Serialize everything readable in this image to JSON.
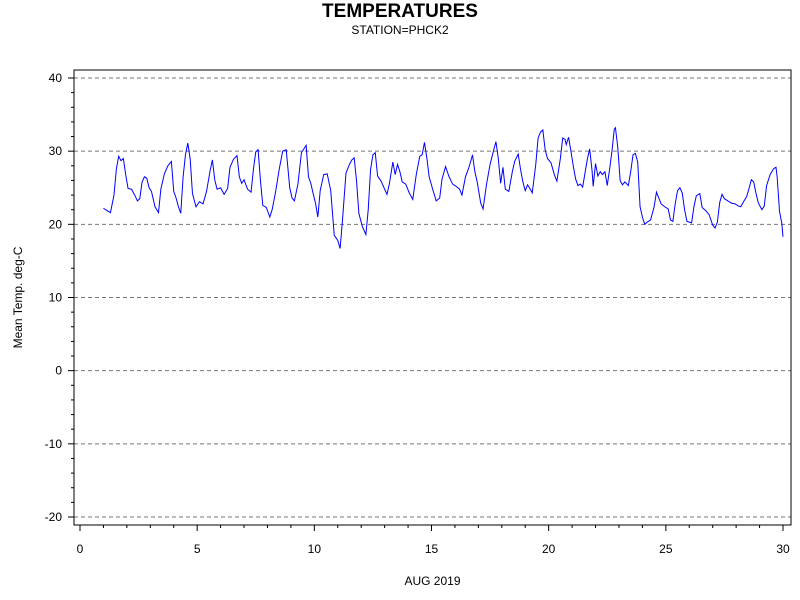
{
  "title": "TEMPERATURES",
  "subtitle": "STATION=PHCK2",
  "chart_data": {
    "type": "line",
    "title": "TEMPERATURES",
    "subtitle": "STATION=PHCK2",
    "xlabel": "AUG 2019",
    "ylabel": "Mean Temp. deg-C",
    "xlim": [
      0,
      30
    ],
    "ylim": [
      -20,
      40
    ],
    "x_ticks": [
      0,
      5,
      10,
      15,
      20,
      25,
      30
    ],
    "y_ticks": [
      -20,
      -10,
      0,
      10,
      20,
      30,
      40
    ],
    "grid": "horizontal-dashed",
    "series_color": "#0000ff",
    "series": [
      {
        "points": [
          [
            1.0,
            22.2
          ],
          [
            1.15,
            21.9
          ],
          [
            1.3,
            21.6
          ],
          [
            1.45,
            24.0
          ],
          [
            1.55,
            27.5
          ],
          [
            1.65,
            29.3
          ],
          [
            1.75,
            28.7
          ],
          [
            1.85,
            29.0
          ],
          [
            1.95,
            26.8
          ],
          [
            2.05,
            24.9
          ],
          [
            2.2,
            24.8
          ],
          [
            2.35,
            23.9
          ],
          [
            2.45,
            23.2
          ],
          [
            2.55,
            23.5
          ],
          [
            2.65,
            25.8
          ],
          [
            2.75,
            26.5
          ],
          [
            2.85,
            26.3
          ],
          [
            2.95,
            25.0
          ],
          [
            3.05,
            24.5
          ],
          [
            3.2,
            22.4
          ],
          [
            3.35,
            21.6
          ],
          [
            3.45,
            24.8
          ],
          [
            3.6,
            26.9
          ],
          [
            3.75,
            28.0
          ],
          [
            3.9,
            28.6
          ],
          [
            4.0,
            24.5
          ],
          [
            4.1,
            23.6
          ],
          [
            4.2,
            22.4
          ],
          [
            4.3,
            21.5
          ],
          [
            4.4,
            26.5
          ],
          [
            4.5,
            29.5
          ],
          [
            4.6,
            31.1
          ],
          [
            4.7,
            29.0
          ],
          [
            4.8,
            24.2
          ],
          [
            4.95,
            22.4
          ],
          [
            5.1,
            23.1
          ],
          [
            5.25,
            22.8
          ],
          [
            5.4,
            24.5
          ],
          [
            5.55,
            27.3
          ],
          [
            5.65,
            28.8
          ],
          [
            5.75,
            26.1
          ],
          [
            5.85,
            24.8
          ],
          [
            6.0,
            25.0
          ],
          [
            6.15,
            24.1
          ],
          [
            6.3,
            24.9
          ],
          [
            6.4,
            27.8
          ],
          [
            6.55,
            28.9
          ],
          [
            6.7,
            29.4
          ],
          [
            6.8,
            26.5
          ],
          [
            6.9,
            25.6
          ],
          [
            7.0,
            26.1
          ],
          [
            7.15,
            24.8
          ],
          [
            7.3,
            24.4
          ],
          [
            7.4,
            27.5
          ],
          [
            7.5,
            29.9
          ],
          [
            7.6,
            30.2
          ],
          [
            7.7,
            26.0
          ],
          [
            7.8,
            22.6
          ],
          [
            7.95,
            22.3
          ],
          [
            8.1,
            21.0
          ],
          [
            8.2,
            22.0
          ],
          [
            8.35,
            24.5
          ],
          [
            8.5,
            27.5
          ],
          [
            8.65,
            30.0
          ],
          [
            8.8,
            30.2
          ],
          [
            8.95,
            25.0
          ],
          [
            9.05,
            23.6
          ],
          [
            9.15,
            23.2
          ],
          [
            9.3,
            25.5
          ],
          [
            9.45,
            29.8
          ],
          [
            9.55,
            30.3
          ],
          [
            9.65,
            30.8
          ],
          [
            9.75,
            26.5
          ],
          [
            9.85,
            25.6
          ],
          [
            9.95,
            24.2
          ],
          [
            10.05,
            22.9
          ],
          [
            10.15,
            21.0
          ],
          [
            10.25,
            24.6
          ],
          [
            10.4,
            26.8
          ],
          [
            10.55,
            26.9
          ],
          [
            10.7,
            24.6
          ],
          [
            10.85,
            18.5
          ],
          [
            11.0,
            17.8
          ],
          [
            11.1,
            16.7
          ],
          [
            11.2,
            20.5
          ],
          [
            11.35,
            27.0
          ],
          [
            11.5,
            28.2
          ],
          [
            11.6,
            28.8
          ],
          [
            11.7,
            29.1
          ],
          [
            11.8,
            26.0
          ],
          [
            11.9,
            21.5
          ],
          [
            12.05,
            19.7
          ],
          [
            12.2,
            18.6
          ],
          [
            12.3,
            22.0
          ],
          [
            12.4,
            27.5
          ],
          [
            12.5,
            29.5
          ],
          [
            12.6,
            29.8
          ],
          [
            12.7,
            26.6
          ],
          [
            12.85,
            25.9
          ],
          [
            13.0,
            24.8
          ],
          [
            13.1,
            24.1
          ],
          [
            13.2,
            25.5
          ],
          [
            13.35,
            28.5
          ],
          [
            13.45,
            26.8
          ],
          [
            13.55,
            28.2
          ],
          [
            13.65,
            27.2
          ],
          [
            13.75,
            25.8
          ],
          [
            13.9,
            25.5
          ],
          [
            14.05,
            24.3
          ],
          [
            14.2,
            23.4
          ],
          [
            14.35,
            26.8
          ],
          [
            14.5,
            29.3
          ],
          [
            14.6,
            29.5
          ],
          [
            14.7,
            31.2
          ],
          [
            14.8,
            29.1
          ],
          [
            14.9,
            26.5
          ],
          [
            15.05,
            24.8
          ],
          [
            15.2,
            23.2
          ],
          [
            15.35,
            23.6
          ],
          [
            15.45,
            26.2
          ],
          [
            15.6,
            27.9
          ],
          [
            15.75,
            26.5
          ],
          [
            15.9,
            25.5
          ],
          [
            16.05,
            25.2
          ],
          [
            16.2,
            24.8
          ],
          [
            16.3,
            24.0
          ],
          [
            16.45,
            26.5
          ],
          [
            16.6,
            27.8
          ],
          [
            16.75,
            29.5
          ],
          [
            16.85,
            27.2
          ],
          [
            16.95,
            25.8
          ],
          [
            17.1,
            22.9
          ],
          [
            17.2,
            22.1
          ],
          [
            17.35,
            25.5
          ],
          [
            17.5,
            28.2
          ],
          [
            17.65,
            30.1
          ],
          [
            17.75,
            31.3
          ],
          [
            17.85,
            29.0
          ],
          [
            17.95,
            25.6
          ],
          [
            18.05,
            27.8
          ],
          [
            18.15,
            24.8
          ],
          [
            18.3,
            24.5
          ],
          [
            18.45,
            27.2
          ],
          [
            18.55,
            28.6
          ],
          [
            18.7,
            29.6
          ],
          [
            18.8,
            27.5
          ],
          [
            18.9,
            25.8
          ],
          [
            19.0,
            24.6
          ],
          [
            19.1,
            25.4
          ],
          [
            19.2,
            24.9
          ],
          [
            19.3,
            24.3
          ],
          [
            19.45,
            28.2
          ],
          [
            19.55,
            31.8
          ],
          [
            19.65,
            32.6
          ],
          [
            19.75,
            32.9
          ],
          [
            19.85,
            30.2
          ],
          [
            19.95,
            29.0
          ],
          [
            20.1,
            28.4
          ],
          [
            20.25,
            26.7
          ],
          [
            20.35,
            25.9
          ],
          [
            20.5,
            29.0
          ],
          [
            20.6,
            31.8
          ],
          [
            20.7,
            31.6
          ],
          [
            20.75,
            30.9
          ],
          [
            20.85,
            31.9
          ],
          [
            20.95,
            30.0
          ],
          [
            21.05,
            28.0
          ],
          [
            21.15,
            26.2
          ],
          [
            21.25,
            25.3
          ],
          [
            21.35,
            25.5
          ],
          [
            21.45,
            25.1
          ],
          [
            21.55,
            27.0
          ],
          [
            21.65,
            28.9
          ],
          [
            21.75,
            30.3
          ],
          [
            21.85,
            27.4
          ],
          [
            21.9,
            25.2
          ],
          [
            22.0,
            28.3
          ],
          [
            22.1,
            26.6
          ],
          [
            22.2,
            27.2
          ],
          [
            22.3,
            26.8
          ],
          [
            22.4,
            27.2
          ],
          [
            22.5,
            25.3
          ],
          [
            22.6,
            27.5
          ],
          [
            22.7,
            30.0
          ],
          [
            22.8,
            33.0
          ],
          [
            22.85,
            33.2
          ],
          [
            22.95,
            30.5
          ],
          [
            23.05,
            26.0
          ],
          [
            23.15,
            25.4
          ],
          [
            23.25,
            25.8
          ],
          [
            23.4,
            25.3
          ],
          [
            23.5,
            27.2
          ],
          [
            23.6,
            29.5
          ],
          [
            23.7,
            29.7
          ],
          [
            23.8,
            28.5
          ],
          [
            23.9,
            22.4
          ],
          [
            24.0,
            21.0
          ],
          [
            24.1,
            20.0
          ],
          [
            24.2,
            20.3
          ],
          [
            24.35,
            20.6
          ],
          [
            24.5,
            22.4
          ],
          [
            24.6,
            24.4
          ],
          [
            24.7,
            23.6
          ],
          [
            24.8,
            22.8
          ],
          [
            24.95,
            22.4
          ],
          [
            25.1,
            22.1
          ],
          [
            25.2,
            20.6
          ],
          [
            25.3,
            20.4
          ],
          [
            25.4,
            22.8
          ],
          [
            25.5,
            24.6
          ],
          [
            25.6,
            25.0
          ],
          [
            25.7,
            24.3
          ],
          [
            25.8,
            22.0
          ],
          [
            25.9,
            20.4
          ],
          [
            26.0,
            20.3
          ],
          [
            26.1,
            20.2
          ],
          [
            26.2,
            22.4
          ],
          [
            26.3,
            23.9
          ],
          [
            26.45,
            24.2
          ],
          [
            26.55,
            22.3
          ],
          [
            26.7,
            21.9
          ],
          [
            26.85,
            21.3
          ],
          [
            27.0,
            19.9
          ],
          [
            27.1,
            19.5
          ],
          [
            27.2,
            20.3
          ],
          [
            27.3,
            23.0
          ],
          [
            27.4,
            24.1
          ],
          [
            27.5,
            23.5
          ],
          [
            27.65,
            23.2
          ],
          [
            27.8,
            22.9
          ],
          [
            27.95,
            22.8
          ],
          [
            28.1,
            22.5
          ],
          [
            28.2,
            22.4
          ],
          [
            28.3,
            23.0
          ],
          [
            28.45,
            23.8
          ],
          [
            28.55,
            24.9
          ],
          [
            28.65,
            26.1
          ],
          [
            28.75,
            25.8
          ],
          [
            28.85,
            24.2
          ],
          [
            28.95,
            22.9
          ],
          [
            29.1,
            22.0
          ],
          [
            29.2,
            22.5
          ],
          [
            29.3,
            25.3
          ],
          [
            29.45,
            26.8
          ],
          [
            29.6,
            27.6
          ],
          [
            29.7,
            27.8
          ],
          [
            29.75,
            26.5
          ],
          [
            29.85,
            21.8
          ],
          [
            29.95,
            20.1
          ],
          [
            30.0,
            18.3
          ]
        ]
      }
    ]
  }
}
